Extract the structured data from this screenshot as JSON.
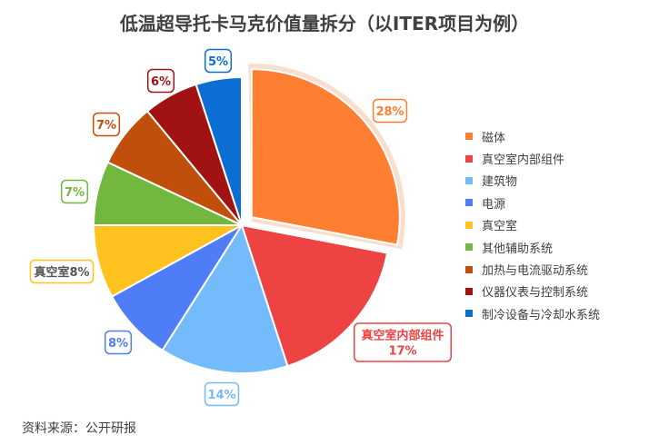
{
  "title": "低温超导托卡马克价值量拆分（以ITER项目为例）",
  "source": "资料来源：公开研报",
  "chart_data": {
    "type": "pie",
    "title": "低温超导托卡马克价值量拆分（以ITER项目为例）",
    "legend_position": "right",
    "slices": [
      {
        "name": "磁体",
        "value": 28,
        "label": "28%",
        "color": "#FF7F32",
        "exploded": true
      },
      {
        "name": "真空室内部组件",
        "value": 17,
        "label": "真空室内部组件\n17%",
        "color": "#EE4343"
      },
      {
        "name": "建筑物",
        "value": 14,
        "label": "14%",
        "color": "#74BBFB"
      },
      {
        "name": "电源",
        "value": 8,
        "label": "8%",
        "color": "#4F7CF7"
      },
      {
        "name": "真空室",
        "value": 8,
        "label": "真空室8%",
        "color": "#FFC21F"
      },
      {
        "name": "其他辅助系统",
        "value": 7,
        "label": "7%",
        "color": "#72B73E"
      },
      {
        "name": "加热与电流驱动系统",
        "value": 7,
        "label": "7%",
        "color": "#BF4F0A"
      },
      {
        "name": "仪器仪表与控制系统",
        "value": 6,
        "label": "6%",
        "color": "#A11313"
      },
      {
        "name": "制冷设备与冷却水系统",
        "value": 5,
        "label": "5%",
        "color": "#0A6ED2"
      }
    ]
  }
}
